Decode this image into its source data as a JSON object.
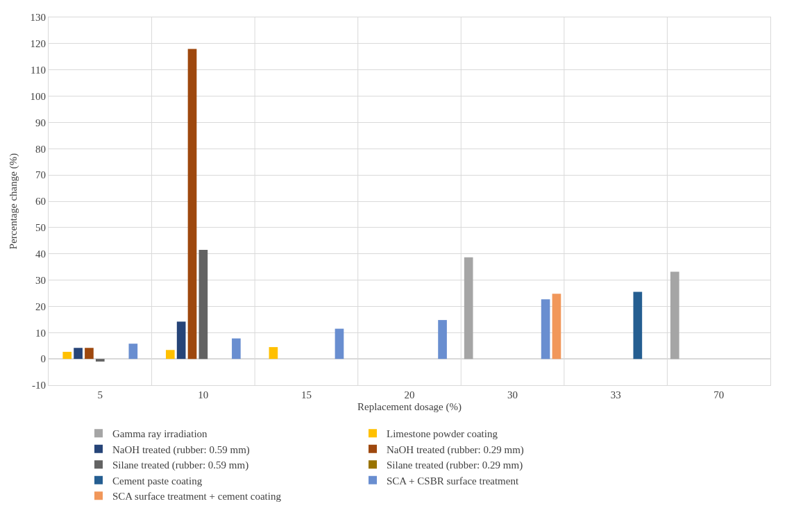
{
  "chart_data": {
    "type": "bar",
    "xlabel": "Replacement dosage (%)",
    "ylabel": "Percentage change (%)",
    "categories": [
      "5",
      "10",
      "15",
      "20",
      "30",
      "33",
      "70"
    ],
    "ylim": [
      -10,
      130
    ],
    "yticks": [
      -10,
      0,
      10,
      20,
      30,
      40,
      50,
      60,
      70,
      80,
      90,
      100,
      110,
      120,
      130
    ],
    "grid": true,
    "legend": "bottom",
    "series": [
      {
        "name": "Gamma ray irradiation",
        "color": "#a5a5a5",
        "values": [
          null,
          null,
          null,
          null,
          38.7,
          null,
          33.2
        ]
      },
      {
        "name": "Limestone powder coating",
        "color": "#ffc000",
        "values": [
          2.7,
          3.4,
          4.5,
          null,
          null,
          null,
          null
        ]
      },
      {
        "name": "NaOH treated (rubber: 0.59 mm)",
        "color": "#264478",
        "values": [
          4.2,
          14.2,
          null,
          null,
          null,
          null,
          null
        ]
      },
      {
        "name": "NaOH treated (rubber: 0.29 mm)",
        "color": "#9e480e",
        "values": [
          4.2,
          118,
          null,
          null,
          null,
          null,
          null
        ]
      },
      {
        "name": "Silane treated (rubber: 0.59 mm)",
        "color": "#636363",
        "values": [
          -1,
          41.5,
          null,
          null,
          null,
          null,
          null
        ]
      },
      {
        "name": "Silane treated (rubber: 0.29 mm)",
        "color": "#997300",
        "values": [
          null,
          null,
          null,
          null,
          null,
          null,
          null
        ]
      },
      {
        "name": "Cement paste coating",
        "color": "#255e91",
        "values": [
          null,
          null,
          null,
          null,
          null,
          25.5,
          null
        ]
      },
      {
        "name": "SCA + CSBR surface treatment",
        "color": "#698ed0",
        "values": [
          5.8,
          7.8,
          11.5,
          14.8,
          22.7,
          null,
          null
        ]
      },
      {
        "name": "SCA surface treatment + cement coating",
        "color": "#f1975a",
        "values": [
          null,
          null,
          null,
          null,
          24.8,
          null,
          null
        ]
      }
    ]
  }
}
